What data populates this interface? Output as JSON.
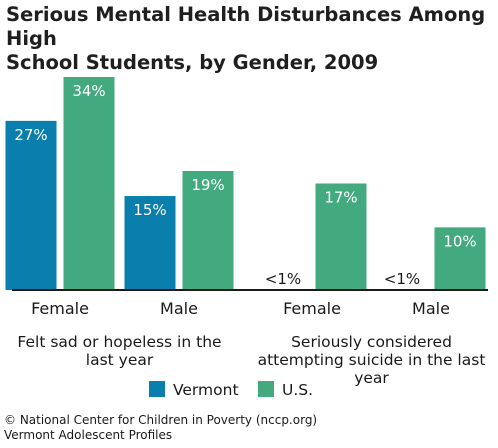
{
  "title_lines": [
    "Serious Mental Health Disturbances Among High",
    "School Students, by Gender, 2009"
  ],
  "colors": {
    "vermont": "#0a7ead",
    "us": "#43aa7f",
    "axis": "#1a1a1a"
  },
  "chart_data": {
    "type": "bar",
    "title": "Serious Mental Health Disturbances Among High School Students, by Gender, 2009",
    "categories": [
      "Female",
      "Male",
      "Female",
      "Male"
    ],
    "groups": [
      {
        "lines": [
          "Felt sad or hopeless in the",
          "last year"
        ],
        "categories": [
          0,
          1
        ]
      },
      {
        "lines": [
          "Seriously considered",
          "attempting suicide in the last",
          "year"
        ],
        "categories": [
          2,
          3
        ]
      }
    ],
    "series": [
      {
        "name": "Vermont",
        "values": [
          27,
          15,
          null,
          null
        ],
        "labels": [
          "27%",
          "15%",
          "<1%",
          "<1%"
        ]
      },
      {
        "name": "U.S.",
        "values": [
          34,
          19,
          17,
          10
        ],
        "labels": [
          "34%",
          "19%",
          "17%",
          "10%"
        ]
      }
    ],
    "ylim": [
      0,
      34
    ],
    "grid": false,
    "legend": "bottom"
  },
  "footer_lines": [
    "© National Center for Children in Poverty (nccp.org)",
    "Vermont Adolescent Profiles"
  ]
}
